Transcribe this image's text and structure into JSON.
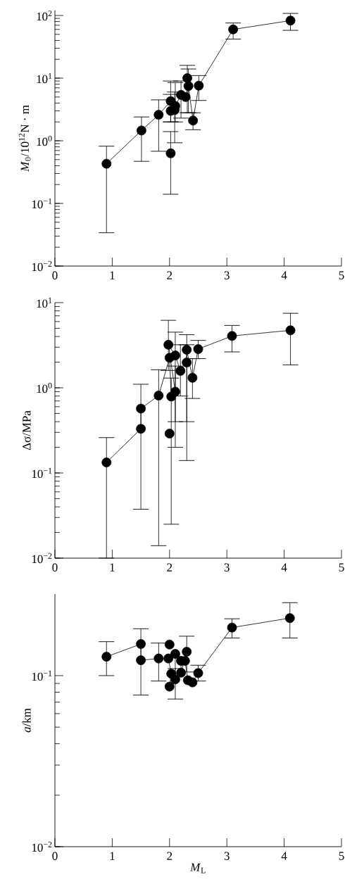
{
  "chart_data": [
    {
      "type": "line",
      "ylabel": "*M*$_{0}$/10$^{12}$N · m",
      "xlim": [
        0,
        5
      ],
      "xticks": [
        0,
        1,
        2,
        3,
        4,
        5
      ],
      "ylim": [
        0.01,
        120
      ],
      "log": true,
      "marker": "circle",
      "line_style": "solid",
      "yticks": [
        {
          "value": 0.01,
          "label": "10$^{−2}$"
        },
        {
          "value": 0.1,
          "label": "10$^{−1}$"
        },
        {
          "value": 1,
          "label": "10$^{0}$"
        },
        {
          "value": 10,
          "label": "10$^{1}$"
        },
        {
          "value": 100,
          "label": "10$^{2}$"
        }
      ],
      "series": [
        {
          "color": "#000000",
          "x": [
            0.9,
            1.51,
            1.81,
            2.02,
            2.02,
            2.09,
            2.1,
            2.2,
            2.28,
            2.33,
            2.31,
            2.41,
            2.51,
            3.11,
            4.11
          ],
          "values": [
            0.43,
            1.46,
            2.6,
            4.3,
            3.0,
            3.1,
            3.6,
            5.4,
            5.0,
            7.5,
            10,
            2.1,
            7.6,
            60,
            83
          ],
          "errors": [
            [
              0.034,
              0.82
            ],
            [
              0.47,
              2.4
            ],
            [
              0.68,
              4.5
            ],
            [
              2.0,
              9.0
            ],
            [
              2.0,
              5.5
            ],
            [
              0.93,
              6.0
            ],
            [
              2.0,
              8.5
            ],
            [
              2.3,
              9.0
            ],
            null,
            [
              2.8,
              14
            ],
            [
              2.8,
              16
            ],
            [
              1.5,
              2.8
            ],
            [
              4.4,
              11
            ],
            [
              42,
              76
            ],
            [
              58,
              108
            ]
          ]
        },
        {
          "type": "scatter",
          "color": "#000000",
          "x": [
            2.02
          ],
          "values": [
            0.63
          ],
          "errors": [
            [
              0.14,
              1.4
            ]
          ]
        }
      ]
    },
    {
      "type": "line",
      "ylabel": "Δσ/MPa",
      "xlim": [
        0,
        5
      ],
      "xticks": [
        0,
        1,
        2,
        3,
        4,
        5
      ],
      "ylim": [
        0.01,
        10
      ],
      "log": true,
      "marker": "circle",
      "line_style": "solid",
      "yticks": [
        {
          "value": 0.01,
          "label": "10$^{−2}$"
        },
        {
          "value": 0.1,
          "label": "10$^{−1}$"
        },
        {
          "value": 1,
          "label": "10$^{0}$"
        },
        {
          "value": 10,
          "label": "10$^{1}$"
        }
      ],
      "series": [
        {
          "color": "#000000",
          "x": [
            0.9,
            1.5,
            1.5,
            1.81,
            2.0,
            2.03,
            2.1,
            1.98,
            2.1,
            2.19,
            2.3,
            2.3,
            2.4,
            2.5,
            3.09,
            4.11
          ],
          "values": [
            0.133,
            0.33,
            0.57,
            0.81,
            2.25,
            0.79,
            0.9,
            3.2,
            2.4,
            1.58,
            1.98,
            2.8,
            1.31,
            2.85,
            4.06,
            4.73
          ],
          "errors": [
            [
              0.01,
              0.26
            ],
            [
              0.0375,
              1.1
            ],
            null,
            [
              0.014,
              1.63
            ],
            null,
            [
              0.025,
              1.3
            ],
            [
              0.2,
              1.8
            ],
            [
              1.6,
              6.2
            ],
            [
              0.4,
              4.5
            ],
            [
              0.8,
              3.2
            ],
            [
              0.4,
              3.2
            ],
            [
              0.14,
              4.2
            ],
            [
              0.75,
              2.2
            ],
            [
              2.2,
              3.6
            ],
            [
              2.64,
              5.4
            ],
            [
              1.86,
              7.5
            ]
          ]
        },
        {
          "type": "scatter",
          "color": "#000000",
          "x": [
            2.0
          ],
          "values": [
            0.29
          ]
        }
      ]
    },
    {
      "type": "line",
      "ylabel": "*a*/km",
      "xlabel": "*M*$_{L}$",
      "xlim": [
        0,
        5
      ],
      "xticks": [
        0,
        1,
        2,
        3,
        4,
        5
      ],
      "ylim": [
        0.01,
        0.3
      ],
      "log": true,
      "marker": "circle",
      "line_style": "solid",
      "yticks": [
        {
          "value": 0.01,
          "label": "10$^{−2}$"
        },
        {
          "value": 0.1,
          "label": "10$^{−1}$"
        }
      ],
      "series": [
        {
          "color": "#000000",
          "x": [
            0.9,
            1.5,
            1.5,
            1.81,
            1.98,
            2.03,
            2.0,
            2.1,
            2.1,
            2.2,
            2.2,
            2.3,
            2.27,
            2.32,
            2.4,
            2.5,
            3.09,
            4.1
          ],
          "values": [
            0.129,
            0.153,
            0.123,
            0.126,
            0.126,
            0.1026,
            0.0863,
            0.095,
            0.134,
            0.122,
            0.104,
            0.138,
            0.122,
            0.094,
            0.0913,
            0.1035,
            0.191,
            0.217
          ],
          "errors": [
            [
              0.1,
              0.158
            ],
            [
              0.077,
              0.188
            ],
            null,
            [
              0.093,
              0.155
            ],
            null,
            null,
            null,
            [
              0.073,
              0.11
            ],
            null,
            null,
            null,
            [
              0.105,
              0.17
            ],
            null,
            null,
            null,
            [
              0.093,
              0.115
            ],
            [
              0.166,
              0.215
            ],
            [
              0.166,
              0.267
            ]
          ]
        },
        {
          "type": "scatter",
          "color": "#000000",
          "x": [
            2.0
          ],
          "values": [
            0.152
          ]
        }
      ]
    }
  ]
}
